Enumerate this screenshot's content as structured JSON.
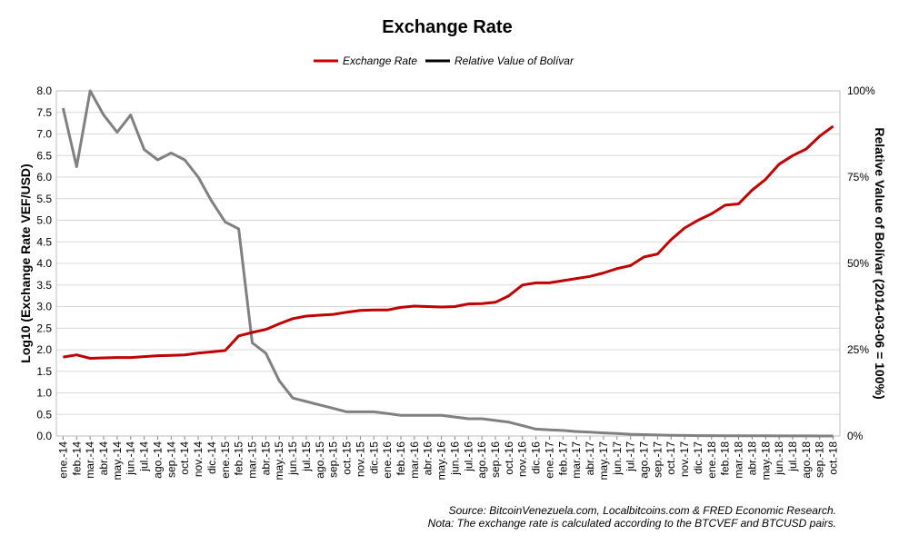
{
  "chart_data": {
    "type": "line",
    "title": "Exchange Rate",
    "ylabel": "Log10 (Exchange Rate VEF/USD)",
    "y2label": "Relative Value of Bolívar (2014-03-06 = 100%)",
    "ylim": [
      0,
      8
    ],
    "y2lim": [
      0,
      100
    ],
    "yticks": [
      "0.0",
      "0.5",
      "1.0",
      "1.5",
      "2.0",
      "2.5",
      "3.0",
      "3.5",
      "4.0",
      "4.5",
      "5.0",
      "5.5",
      "6.0",
      "6.5",
      "7.0",
      "7.5",
      "8.0"
    ],
    "y2ticks": [
      "0%",
      "25%",
      "50%",
      "75%",
      "100%"
    ],
    "x": [
      "ene.-14",
      "feb.-14",
      "mar.-14",
      "abr.-14",
      "may.-14",
      "jun.-14",
      "jul.-14",
      "ago.-14",
      "sep.-14",
      "oct.-14",
      "nov.-14",
      "dic.-14",
      "ene.-15",
      "feb.-15",
      "mar.-15",
      "abr.-15",
      "may.-15",
      "jun.-15",
      "jul.-15",
      "ago.-15",
      "sep.-15",
      "oct.-15",
      "nov.-15",
      "dic.-15",
      "ene.-16",
      "feb.-16",
      "mar.-16",
      "abr.-16",
      "may.-16",
      "jun.-16",
      "jul.-16",
      "ago.-16",
      "sep.-16",
      "oct.-16",
      "nov.-16",
      "dic.-16",
      "ene.-17",
      "feb.-17",
      "mar.-17",
      "abr.-17",
      "may.-17",
      "jun.-17",
      "jul.-17",
      "ago.-17",
      "sep.-17",
      "oct.-17",
      "nov.-17",
      "dic.-17",
      "ene.-18",
      "feb.-18",
      "mar.-18",
      "abr.-18",
      "may.-18",
      "jun.-18",
      "jul.-18",
      "ago.-18",
      "sep.-18",
      "oct.-18"
    ],
    "legend_position": "top-center",
    "grid": true,
    "series": [
      {
        "name": "Exchange Rate",
        "color": "#c00000",
        "axis": "left",
        "values": [
          1.83,
          1.88,
          1.8,
          1.81,
          1.82,
          1.82,
          1.84,
          1.86,
          1.87,
          1.88,
          1.92,
          1.95,
          1.98,
          2.32,
          2.4,
          2.47,
          2.6,
          2.72,
          2.78,
          2.8,
          2.82,
          2.87,
          2.91,
          2.92,
          2.92,
          2.98,
          3.01,
          3.0,
          2.99,
          3.0,
          3.06,
          3.07,
          3.1,
          3.25,
          3.5,
          3.55,
          3.55,
          3.6,
          3.65,
          3.7,
          3.78,
          3.88,
          3.95,
          4.15,
          4.22,
          4.55,
          4.82,
          5.0,
          5.15,
          5.35,
          5.38,
          5.7,
          5.95,
          6.3,
          6.5,
          6.65,
          6.95,
          7.18
        ]
      },
      {
        "name": "Relative Value of Bolívar",
        "color": "#808080",
        "axis": "right",
        "values": [
          95,
          78,
          100,
          93,
          88,
          93,
          83,
          80,
          82,
          80,
          75,
          68,
          62,
          60,
          27,
          24,
          16,
          11,
          10,
          9,
          8,
          7,
          7,
          7,
          6.5,
          6,
          6,
          6,
          6,
          5.5,
          5,
          5,
          4.5,
          4,
          3,
          2,
          1.8,
          1.6,
          1.3,
          1.1,
          0.9,
          0.7,
          0.5,
          0.4,
          0.3,
          0.2,
          0.15,
          0.1,
          0.1,
          0.08,
          0.07,
          0.05,
          0.04,
          0.03,
          0.03,
          0.02,
          0.01,
          0.01
        ]
      }
    ]
  },
  "source": {
    "line1": "Source: BitcoinVenezuela.com, Localbitcoins.com & FRED Economic Research.",
    "line2": "Nota: The exchange rate is calculated according to the BTCVEF and BTCUSD pairs."
  }
}
